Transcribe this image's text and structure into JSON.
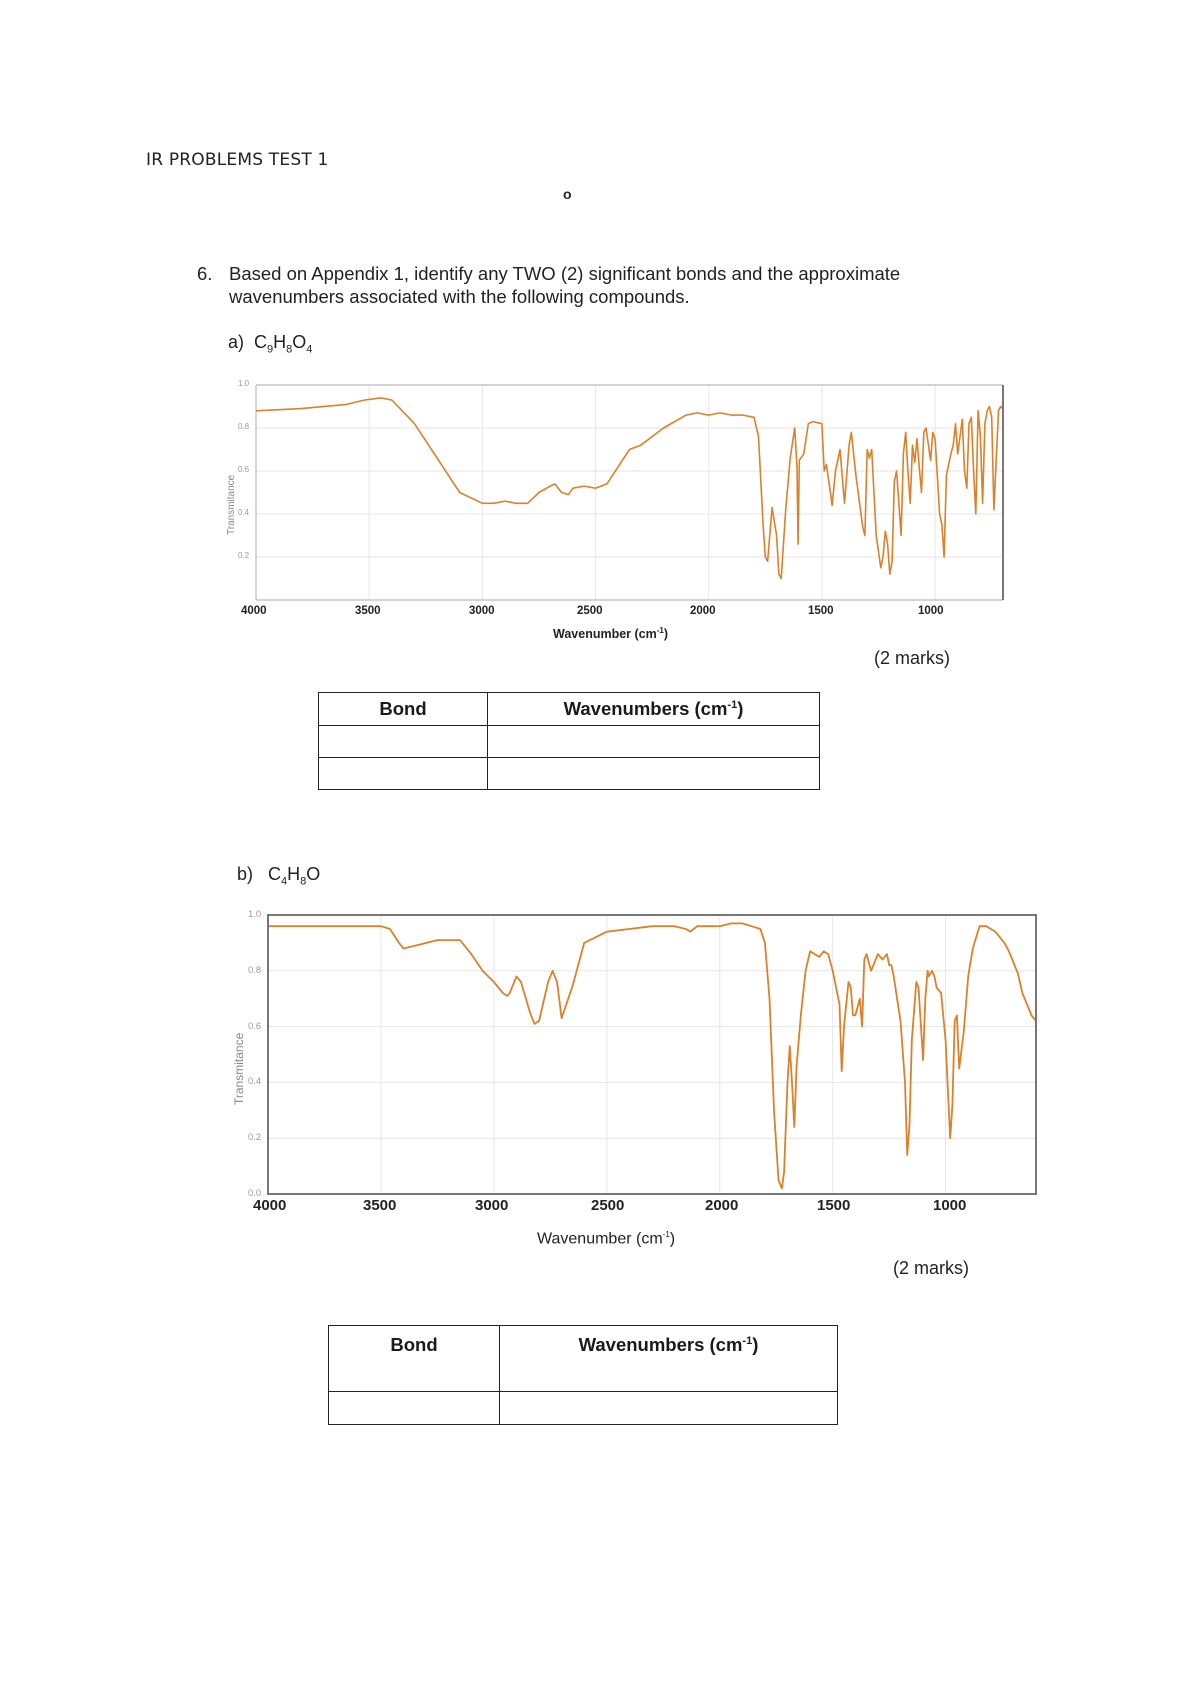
{
  "header": {
    "title": "IR PROBLEMS TEST 1",
    "marker": "o"
  },
  "question": {
    "number": "6.",
    "text": "Based on Appendix 1, identify any TWO (2) significant bonds and the approximate wavenumbers associated with the following compounds."
  },
  "parts": [
    {
      "label": "a)",
      "formula": {
        "c": "C",
        "c_sub": "9",
        "h": "H",
        "h_sub": "8",
        "o": "O",
        "o_sub": "4"
      },
      "marks": "(2 marks)",
      "table": {
        "headers": [
          "Bond",
          "Wavenumbers (cm",
          "-1",
          ")"
        ],
        "rows": [
          [
            "",
            ""
          ],
          [
            "",
            ""
          ]
        ]
      }
    },
    {
      "label": "b)",
      "formula": {
        "c": "C",
        "c_sub": "4",
        "h": "H",
        "h_sub": "8",
        "o": "O",
        "o_sub": ""
      },
      "marks": "(2 marks)",
      "table": {
        "headers": [
          "Bond",
          "Wavenumbers (cm",
          "-1",
          ")"
        ],
        "rows": [
          [
            "",
            ""
          ]
        ]
      }
    }
  ],
  "chart_data": [
    {
      "type": "line",
      "title": "IR spectrum of C9H8O4",
      "xlabel": "Wavenumber (cm-1)",
      "ylabel": "Transmitance",
      "xlim": [
        4000,
        700
      ],
      "ylim": [
        0.0,
        1.0
      ],
      "x_ticks": [
        4000,
        3500,
        3000,
        2500,
        2000,
        1500,
        1000
      ],
      "y_ticks": [
        0.2,
        0.4,
        0.6,
        0.8,
        1.0
      ],
      "y_tick_labels": [
        "0.2",
        "0.4",
        "0.6",
        "0.8",
        "1.0"
      ],
      "grid": true,
      "color": "#d9822b",
      "series": [
        {
          "name": "C9H8O4",
          "x": [
            4000,
            3800,
            3600,
            3520,
            3450,
            3400,
            3300,
            3200,
            3100,
            3000,
            2950,
            2900,
            2850,
            2800,
            2750,
            2700,
            2680,
            2650,
            2620,
            2600,
            2550,
            2500,
            2450,
            2400,
            2350,
            2300,
            2200,
            2100,
            2050,
            2000,
            1950,
            1900,
            1850,
            1800,
            1780,
            1760,
            1750,
            1740,
            1720,
            1700,
            1690,
            1680,
            1660,
            1640,
            1620,
            1610,
            1605,
            1600,
            1580,
            1560,
            1540,
            1500,
            1490,
            1480,
            1460,
            1455,
            1440,
            1420,
            1400,
            1380,
            1370,
            1350,
            1320,
            1310,
            1300,
            1290,
            1280,
            1260,
            1240,
            1230,
            1220,
            1210,
            1200,
            1190,
            1180,
            1170,
            1150,
            1140,
            1130,
            1120,
            1110,
            1100,
            1090,
            1080,
            1070,
            1060,
            1050,
            1040,
            1020,
            1010,
            1000,
            980,
            970,
            960,
            950,
            930,
            920,
            910,
            900,
            880,
            870,
            860,
            850,
            840,
            830,
            820,
            810,
            800,
            790,
            780,
            770,
            760,
            750,
            740,
            720,
            710,
            700
          ],
          "y": [
            0.88,
            0.89,
            0.91,
            0.93,
            0.94,
            0.93,
            0.82,
            0.66,
            0.5,
            0.45,
            0.45,
            0.46,
            0.45,
            0.45,
            0.5,
            0.53,
            0.54,
            0.5,
            0.49,
            0.52,
            0.53,
            0.52,
            0.54,
            0.62,
            0.7,
            0.72,
            0.8,
            0.86,
            0.87,
            0.86,
            0.87,
            0.86,
            0.86,
            0.85,
            0.76,
            0.35,
            0.2,
            0.18,
            0.43,
            0.3,
            0.12,
            0.1,
            0.42,
            0.66,
            0.8,
            0.62,
            0.26,
            0.65,
            0.68,
            0.82,
            0.83,
            0.82,
            0.6,
            0.63,
            0.48,
            0.44,
            0.6,
            0.7,
            0.45,
            0.72,
            0.78,
            0.58,
            0.34,
            0.3,
            0.7,
            0.66,
            0.7,
            0.3,
            0.15,
            0.2,
            0.32,
            0.26,
            0.12,
            0.18,
            0.55,
            0.6,
            0.3,
            0.68,
            0.78,
            0.6,
            0.45,
            0.72,
            0.64,
            0.75,
            0.62,
            0.5,
            0.78,
            0.8,
            0.65,
            0.78,
            0.75,
            0.4,
            0.35,
            0.2,
            0.58,
            0.68,
            0.72,
            0.82,
            0.68,
            0.84,
            0.6,
            0.52,
            0.82,
            0.85,
            0.6,
            0.4,
            0.88,
            0.76,
            0.45,
            0.82,
            0.88,
            0.9,
            0.85,
            0.42,
            0.88,
            0.9,
            0.89
          ]
        }
      ]
    },
    {
      "type": "line",
      "title": "IR spectrum of C4H8O",
      "xlabel": "Wavenumber (cm-1)",
      "ylabel": "Transmitance",
      "xlim": [
        4000,
        600
      ],
      "ylim": [
        0.0,
        1.0
      ],
      "x_ticks": [
        4000,
        3500,
        3000,
        2500,
        2000,
        1500,
        1000
      ],
      "y_ticks": [
        0.0,
        0.2,
        0.4,
        0.6,
        0.8,
        1.0
      ],
      "y_tick_labels": [
        "0.0",
        "0.2",
        "0.4",
        "0.6",
        "0.8",
        "1.0"
      ],
      "grid": true,
      "color": "#d9822b",
      "series": [
        {
          "name": "C4H8O",
          "x": [
            4000,
            3800,
            3600,
            3500,
            3460,
            3420,
            3400,
            3350,
            3250,
            3150,
            3100,
            3050,
            3000,
            2960,
            2940,
            2930,
            2900,
            2880,
            2840,
            2820,
            2800,
            2760,
            2740,
            2720,
            2700,
            2650,
            2600,
            2500,
            2400,
            2300,
            2200,
            2150,
            2130,
            2100,
            2000,
            1950,
            1900,
            1860,
            1820,
            1800,
            1780,
            1760,
            1740,
            1725,
            1715,
            1700,
            1690,
            1680,
            1670,
            1660,
            1640,
            1620,
            1600,
            1560,
            1540,
            1520,
            1500,
            1470,
            1460,
            1450,
            1430,
            1420,
            1410,
            1400,
            1380,
            1370,
            1360,
            1350,
            1330,
            1300,
            1280,
            1260,
            1250,
            1240,
            1230,
            1200,
            1180,
            1170,
            1160,
            1150,
            1130,
            1120,
            1100,
            1090,
            1080,
            1075,
            1060,
            1050,
            1040,
            1020,
            1000,
            990,
            980,
            970,
            960,
            950,
            940,
            920,
            900,
            880,
            850,
            820,
            800,
            780,
            760,
            740,
            720,
            700,
            680,
            660,
            640,
            620,
            600
          ],
          "y": [
            0.96,
            0.96,
            0.96,
            0.96,
            0.95,
            0.9,
            0.88,
            0.89,
            0.91,
            0.91,
            0.86,
            0.8,
            0.76,
            0.72,
            0.71,
            0.72,
            0.78,
            0.76,
            0.65,
            0.61,
            0.62,
            0.76,
            0.8,
            0.76,
            0.63,
            0.75,
            0.9,
            0.94,
            0.95,
            0.96,
            0.96,
            0.95,
            0.94,
            0.96,
            0.96,
            0.97,
            0.97,
            0.96,
            0.95,
            0.9,
            0.7,
            0.3,
            0.05,
            0.02,
            0.08,
            0.4,
            0.53,
            0.4,
            0.24,
            0.46,
            0.65,
            0.8,
            0.87,
            0.85,
            0.87,
            0.86,
            0.8,
            0.68,
            0.44,
            0.6,
            0.76,
            0.74,
            0.64,
            0.64,
            0.7,
            0.6,
            0.84,
            0.86,
            0.8,
            0.86,
            0.84,
            0.86,
            0.82,
            0.82,
            0.78,
            0.62,
            0.4,
            0.14,
            0.25,
            0.55,
            0.76,
            0.74,
            0.48,
            0.7,
            0.8,
            0.78,
            0.8,
            0.78,
            0.74,
            0.72,
            0.55,
            0.37,
            0.2,
            0.32,
            0.62,
            0.64,
            0.45,
            0.58,
            0.78,
            0.88,
            0.96,
            0.96,
            0.95,
            0.94,
            0.92,
            0.9,
            0.87,
            0.83,
            0.79,
            0.72,
            0.68,
            0.64,
            0.62
          ]
        }
      ]
    }
  ]
}
